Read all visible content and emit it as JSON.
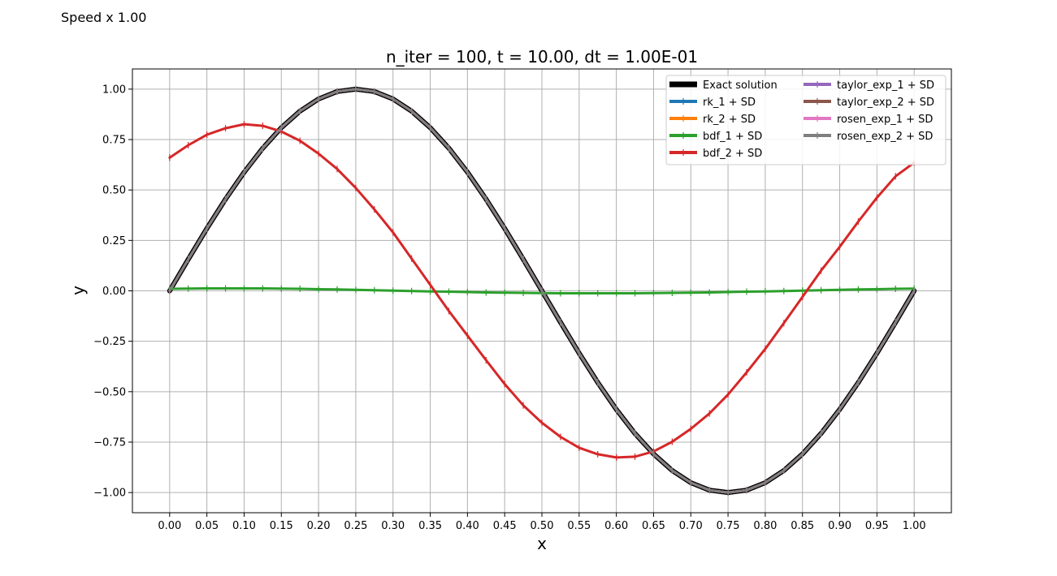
{
  "speed_label": "Speed x 1.00",
  "chart_data": {
    "type": "line",
    "title": "n_iter = 100, t = 10.00, dt = 1.00E-01",
    "xlabel": "x",
    "ylabel": "y",
    "xlim": [
      -0.05,
      1.05
    ],
    "ylim": [
      -1.1,
      1.1
    ],
    "xticks": [
      0.0,
      0.05,
      0.1,
      0.15,
      0.2,
      0.25,
      0.3,
      0.35,
      0.4,
      0.45,
      0.5,
      0.55,
      0.6,
      0.65,
      0.7,
      0.75,
      0.8,
      0.85,
      0.9,
      0.95,
      1.0
    ],
    "xtick_labels": [
      "0.00",
      "0.05",
      "0.10",
      "0.15",
      "0.20",
      "0.25",
      "0.30",
      "0.35",
      "0.40",
      "0.45",
      "0.50",
      "0.55",
      "0.60",
      "0.65",
      "0.70",
      "0.75",
      "0.80",
      "0.85",
      "0.90",
      "0.95",
      "1.00"
    ],
    "yticks": [
      -1.0,
      -0.75,
      -0.5,
      -0.25,
      0.0,
      0.25,
      0.5,
      0.75,
      1.0
    ],
    "ytick_labels": [
      "−1.00",
      "−0.75",
      "−0.50",
      "−0.25",
      "0.00",
      "0.25",
      "0.50",
      "0.75",
      "1.00"
    ],
    "grid": true,
    "legend_position": "top-right",
    "x": [
      0.0,
      0.025,
      0.05,
      0.075,
      0.1,
      0.125,
      0.15,
      0.175,
      0.2,
      0.225,
      0.25,
      0.275,
      0.3,
      0.325,
      0.35,
      0.375,
      0.4,
      0.425,
      0.45,
      0.475,
      0.5,
      0.525,
      0.55,
      0.575,
      0.6,
      0.625,
      0.65,
      0.675,
      0.7,
      0.725,
      0.75,
      0.775,
      0.8,
      0.825,
      0.85,
      0.875,
      0.9,
      0.925,
      0.95,
      0.975,
      1.0
    ],
    "series": [
      {
        "name": "Exact solution",
        "color": "#000000",
        "width": 6,
        "markers": false,
        "values": [
          0.0,
          0.156,
          0.309,
          0.454,
          0.588,
          0.707,
          0.809,
          0.891,
          0.951,
          0.988,
          1.0,
          0.988,
          0.951,
          0.891,
          0.809,
          0.707,
          0.588,
          0.454,
          0.309,
          0.156,
          0.0,
          -0.156,
          -0.309,
          -0.454,
          -0.588,
          -0.707,
          -0.809,
          -0.891,
          -0.951,
          -0.988,
          -1.0,
          -0.988,
          -0.951,
          -0.891,
          -0.809,
          -0.707,
          -0.588,
          -0.454,
          -0.309,
          -0.156,
          0.0
        ]
      },
      {
        "name": "rk_1 + SD",
        "color": "#1f77b4",
        "width": 3,
        "markers": true,
        "values": [
          0.0,
          0.156,
          0.309,
          0.454,
          0.588,
          0.707,
          0.809,
          0.891,
          0.951,
          0.988,
          1.0,
          0.988,
          0.951,
          0.891,
          0.809,
          0.707,
          0.588,
          0.454,
          0.309,
          0.156,
          0.0,
          -0.156,
          -0.309,
          -0.454,
          -0.588,
          -0.707,
          -0.809,
          -0.891,
          -0.951,
          -0.988,
          -1.0,
          -0.988,
          -0.951,
          -0.891,
          -0.809,
          -0.707,
          -0.588,
          -0.454,
          -0.309,
          -0.156,
          0.0
        ]
      },
      {
        "name": "rk_2 + SD",
        "color": "#ff7f0e",
        "width": 3,
        "markers": true,
        "values": [
          0.0,
          0.156,
          0.309,
          0.454,
          0.588,
          0.707,
          0.809,
          0.891,
          0.951,
          0.988,
          1.0,
          0.988,
          0.951,
          0.891,
          0.809,
          0.707,
          0.588,
          0.454,
          0.309,
          0.156,
          0.0,
          -0.156,
          -0.309,
          -0.454,
          -0.588,
          -0.707,
          -0.809,
          -0.891,
          -0.951,
          -0.988,
          -1.0,
          -0.988,
          -0.951,
          -0.891,
          -0.809,
          -0.707,
          -0.588,
          -0.454,
          -0.309,
          -0.156,
          0.0
        ]
      },
      {
        "name": "bdf_1 + SD",
        "color": "#2ca02c",
        "width": 3,
        "markers": true,
        "values": [
          0.01,
          0.011,
          0.012,
          0.012,
          0.012,
          0.012,
          0.011,
          0.01,
          0.008,
          0.007,
          0.005,
          0.003,
          0.001,
          -0.001,
          -0.003,
          -0.004,
          -0.006,
          -0.008,
          -0.009,
          -0.01,
          -0.011,
          -0.012,
          -0.012,
          -0.012,
          -0.012,
          -0.012,
          -0.011,
          -0.01,
          -0.009,
          -0.008,
          -0.006,
          -0.004,
          -0.003,
          -0.001,
          0.001,
          0.003,
          0.005,
          0.007,
          0.008,
          0.01,
          0.011
        ]
      },
      {
        "name": "bdf_2 + SD",
        "color": "#d62728",
        "width": 3,
        "markers": true,
        "values": [
          0.66,
          0.722,
          0.774,
          0.806,
          0.826,
          0.818,
          0.79,
          0.744,
          0.68,
          0.604,
          0.51,
          0.404,
          0.29,
          0.16,
          0.03,
          -0.1,
          -0.222,
          -0.344,
          -0.462,
          -0.568,
          -0.654,
          -0.724,
          -0.778,
          -0.81,
          -0.826,
          -0.822,
          -0.796,
          -0.748,
          -0.684,
          -0.608,
          -0.514,
          -0.404,
          -0.288,
          -0.16,
          -0.03,
          0.1,
          0.218,
          0.344,
          0.462,
          0.568,
          0.636
        ]
      },
      {
        "name": "taylor_exp_1 + SD",
        "color": "#9467bd",
        "width": 3,
        "markers": true,
        "values": [
          0.0,
          0.156,
          0.309,
          0.454,
          0.588,
          0.707,
          0.809,
          0.891,
          0.951,
          0.988,
          1.0,
          0.988,
          0.951,
          0.891,
          0.809,
          0.707,
          0.588,
          0.454,
          0.309,
          0.156,
          0.0,
          -0.156,
          -0.309,
          -0.454,
          -0.588,
          -0.707,
          -0.809,
          -0.891,
          -0.951,
          -0.988,
          -1.0,
          -0.988,
          -0.951,
          -0.891,
          -0.809,
          -0.707,
          -0.588,
          -0.454,
          -0.309,
          -0.156,
          0.0
        ]
      },
      {
        "name": "taylor_exp_2 + SD",
        "color": "#8c564b",
        "width": 3,
        "markers": true,
        "values": [
          0.0,
          0.156,
          0.309,
          0.454,
          0.588,
          0.707,
          0.809,
          0.891,
          0.951,
          0.988,
          1.0,
          0.988,
          0.951,
          0.891,
          0.809,
          0.707,
          0.588,
          0.454,
          0.309,
          0.156,
          0.0,
          -0.156,
          -0.309,
          -0.454,
          -0.588,
          -0.707,
          -0.809,
          -0.891,
          -0.951,
          -0.988,
          -1.0,
          -0.988,
          -0.951,
          -0.891,
          -0.809,
          -0.707,
          -0.588,
          -0.454,
          -0.309,
          -0.156,
          0.0
        ]
      },
      {
        "name": "rosen_exp_1 + SD",
        "color": "#e377c2",
        "width": 3,
        "markers": true,
        "values": [
          0.0,
          0.156,
          0.309,
          0.454,
          0.588,
          0.707,
          0.809,
          0.891,
          0.951,
          0.988,
          1.0,
          0.988,
          0.951,
          0.891,
          0.809,
          0.707,
          0.588,
          0.454,
          0.309,
          0.156,
          0.0,
          -0.156,
          -0.309,
          -0.454,
          -0.588,
          -0.707,
          -0.809,
          -0.891,
          -0.951,
          -0.988,
          -1.0,
          -0.988,
          -0.951,
          -0.891,
          -0.809,
          -0.707,
          -0.588,
          -0.454,
          -0.309,
          -0.156,
          0.0
        ]
      },
      {
        "name": "rosen_exp_2 + SD",
        "color": "#7f7f7f",
        "width": 3,
        "markers": true,
        "values": [
          0.0,
          0.156,
          0.309,
          0.454,
          0.588,
          0.707,
          0.809,
          0.891,
          0.951,
          0.988,
          1.0,
          0.988,
          0.951,
          0.891,
          0.809,
          0.707,
          0.588,
          0.454,
          0.309,
          0.156,
          0.0,
          -0.156,
          -0.309,
          -0.454,
          -0.588,
          -0.707,
          -0.809,
          -0.891,
          -0.951,
          -0.988,
          -1.0,
          -0.988,
          -0.951,
          -0.891,
          -0.809,
          -0.707,
          -0.588,
          -0.454,
          -0.309,
          -0.156,
          0.0
        ]
      }
    ]
  }
}
